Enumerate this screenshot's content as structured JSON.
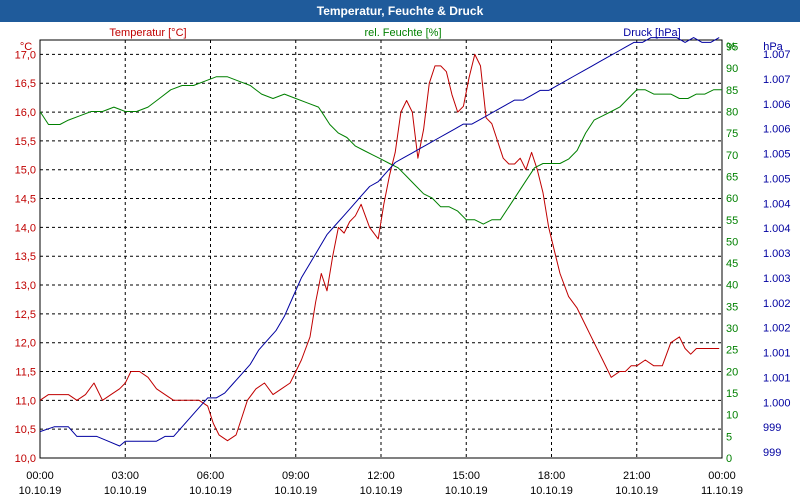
{
  "window": {
    "title": "Temperatur, Feuchte & Druck"
  },
  "chart_data": {
    "type": "line",
    "title": "Temperatur, Feuchte & Druck",
    "x_ticks": [
      {
        "h": 0,
        "time": "00:00",
        "date": "10.10.19"
      },
      {
        "h": 3,
        "time": "03:00",
        "date": "10.10.19"
      },
      {
        "h": 6,
        "time": "06:00",
        "date": "10.10.19"
      },
      {
        "h": 9,
        "time": "09:00",
        "date": "10.10.19"
      },
      {
        "h": 12,
        "time": "12:00",
        "date": "10.10.19"
      },
      {
        "h": 15,
        "time": "15:00",
        "date": "10.10.19"
      },
      {
        "h": 18,
        "time": "18:00",
        "date": "10.10.19"
      },
      {
        "h": 21,
        "time": "21:00",
        "date": "10.10.19"
      },
      {
        "h": 24,
        "time": "00:00",
        "date": "11.10.19"
      }
    ],
    "xlim": [
      0,
      24
    ],
    "grid": true,
    "series": [
      {
        "name": "Temperatur [°C]",
        "axis": "left",
        "unit": "°C",
        "color": "#c00000",
        "ylim": [
          10.0,
          17.25
        ],
        "ticks": [
          "10,0",
          "10,5",
          "11,0",
          "11,5",
          "12,0",
          "12,5",
          "13,0",
          "13,5",
          "14,0",
          "14,5",
          "15,0",
          "15,5",
          "16,0",
          "16,5",
          "17,0"
        ],
        "x": [
          0,
          0.3,
          0.6,
          1.0,
          1.3,
          1.6,
          1.9,
          2.2,
          2.5,
          2.8,
          3.0,
          3.2,
          3.5,
          3.8,
          4.1,
          4.4,
          4.7,
          5.0,
          5.3,
          5.6,
          5.9,
          6.1,
          6.3,
          6.6,
          6.9,
          7.1,
          7.3,
          7.6,
          7.9,
          8.2,
          8.5,
          8.8,
          9.0,
          9.2,
          9.5,
          9.7,
          9.9,
          10.1,
          10.3,
          10.5,
          10.7,
          10.9,
          11.1,
          11.3,
          11.6,
          11.9,
          12.1,
          12.3,
          12.5,
          12.7,
          12.9,
          13.1,
          13.3,
          13.5,
          13.7,
          13.9,
          14.1,
          14.3,
          14.5,
          14.7,
          14.9,
          15.1,
          15.3,
          15.5,
          15.7,
          15.9,
          16.1,
          16.3,
          16.5,
          16.7,
          16.9,
          17.1,
          17.3,
          17.5,
          17.7,
          17.9,
          18.1,
          18.3,
          18.6,
          18.9,
          19.2,
          19.5,
          19.8,
          20.1,
          20.4,
          20.6,
          20.8,
          21.0,
          21.3,
          21.6,
          21.9,
          22.2,
          22.5,
          22.7,
          22.9,
          23.1,
          23.3,
          23.5,
          23.7,
          23.9
        ],
        "values": [
          11.0,
          11.1,
          11.1,
          11.1,
          11.0,
          11.1,
          11.3,
          11.0,
          11.1,
          11.2,
          11.3,
          11.5,
          11.5,
          11.4,
          11.2,
          11.1,
          11.0,
          11.0,
          11.0,
          11.0,
          10.9,
          10.6,
          10.4,
          10.3,
          10.4,
          10.7,
          11.0,
          11.2,
          11.3,
          11.1,
          11.2,
          11.3,
          11.5,
          11.7,
          12.1,
          12.7,
          13.2,
          12.9,
          13.5,
          14.0,
          13.9,
          14.1,
          14.2,
          14.4,
          14.0,
          13.8,
          14.4,
          14.9,
          15.3,
          16.0,
          16.2,
          16.0,
          15.2,
          15.7,
          16.5,
          16.8,
          16.8,
          16.7,
          16.3,
          16.0,
          16.1,
          16.6,
          17.0,
          16.8,
          15.9,
          15.8,
          15.5,
          15.2,
          15.1,
          15.1,
          15.2,
          15.0,
          15.3,
          15.0,
          14.6,
          14.0,
          13.6,
          13.2,
          12.8,
          12.6,
          12.3,
          12.0,
          11.7,
          11.4,
          11.5,
          11.5,
          11.6,
          11.6,
          11.7,
          11.6,
          11.6,
          12.0,
          12.1,
          11.9,
          11.8,
          11.9,
          11.9,
          11.9,
          11.9,
          11.9
        ]
      },
      {
        "name": "rel. Feuchte [%]",
        "axis": "right1",
        "unit": "%",
        "color": "#008000",
        "ylim": [
          0,
          96.5
        ],
        "ticks": [
          "0",
          "5",
          "10",
          "15",
          "20",
          "25",
          "30",
          "35",
          "40",
          "45",
          "50",
          "55",
          "60",
          "65",
          "70",
          "75",
          "80",
          "85",
          "90",
          "95"
        ],
        "x": [
          0,
          0.3,
          0.7,
          1.0,
          1.4,
          1.8,
          2.2,
          2.6,
          3.0,
          3.4,
          3.8,
          4.2,
          4.6,
          5.0,
          5.4,
          5.8,
          6.2,
          6.6,
          7.0,
          7.4,
          7.8,
          8.2,
          8.6,
          9.0,
          9.4,
          9.8,
          10.0,
          10.2,
          10.5,
          10.8,
          11.1,
          11.4,
          11.7,
          12.0,
          12.3,
          12.6,
          12.9,
          13.2,
          13.5,
          13.8,
          14.1,
          14.4,
          14.7,
          15.0,
          15.3,
          15.6,
          15.9,
          16.2,
          16.5,
          16.8,
          17.1,
          17.4,
          17.7,
          18.0,
          18.3,
          18.6,
          18.9,
          19.2,
          19.5,
          19.8,
          20.1,
          20.4,
          20.7,
          21.0,
          21.3,
          21.6,
          21.9,
          22.2,
          22.5,
          22.8,
          23.1,
          23.4,
          23.7,
          24.0
        ],
        "values": [
          80,
          77,
          77,
          78,
          79,
          80,
          80,
          81,
          80,
          80,
          81,
          83,
          85,
          86,
          86,
          87,
          88,
          88,
          87,
          86,
          84,
          83,
          84,
          83,
          82,
          81,
          79,
          77,
          75,
          74,
          72,
          71,
          70,
          69,
          68,
          67,
          65,
          63,
          61,
          60,
          58,
          58,
          57,
          55,
          55,
          54,
          55,
          55,
          58,
          61,
          64,
          67,
          68,
          68,
          68,
          69,
          71,
          75,
          78,
          79,
          80,
          81,
          83,
          85,
          85,
          84,
          84,
          84,
          83,
          83,
          84,
          84,
          85,
          85
        ]
      },
      {
        "name": "Druck [hPa]",
        "axis": "right2",
        "unit": "hPa",
        "color": "#0000a0",
        "ylim": [
          998.75,
          1007.45
        ],
        "ticks": [
          "999",
          "999",
          "1.000",
          "1.001",
          "1.001",
          "1.002",
          "1.002",
          "1.003",
          "1.003",
          "1.004",
          "1.004",
          "1.005",
          "1.005",
          "1.006",
          "1.006",
          "1.007",
          "1.007"
        ],
        "x": [
          0,
          0.5,
          1.0,
          1.3,
          1.6,
          2.0,
          2.4,
          2.8,
          3.0,
          3.2,
          3.5,
          3.8,
          4.1,
          4.4,
          4.7,
          5.0,
          5.3,
          5.6,
          5.9,
          6.2,
          6.5,
          6.8,
          7.1,
          7.4,
          7.7,
          8.0,
          8.3,
          8.6,
          8.9,
          9.2,
          9.5,
          9.8,
          10.1,
          10.4,
          10.7,
          11.0,
          11.3,
          11.6,
          11.9,
          12.2,
          12.5,
          12.8,
          13.1,
          13.4,
          13.7,
          14.0,
          14.3,
          14.6,
          14.9,
          15.2,
          15.5,
          15.8,
          16.1,
          16.4,
          16.7,
          17.0,
          17.3,
          17.6,
          17.9,
          18.2,
          18.5,
          18.8,
          19.1,
          19.4,
          19.7,
          20.0,
          20.3,
          20.6,
          20.9,
          21.2,
          21.5,
          21.8,
          22.1,
          22.4,
          22.7,
          23.0,
          23.3,
          23.6,
          23.9
        ],
        "values": [
          999.3,
          999.4,
          999.4,
          999.2,
          999.2,
          999.2,
          999.1,
          999.0,
          999.1,
          999.1,
          999.1,
          999.1,
          999.1,
          999.2,
          999.2,
          999.4,
          999.6,
          999.8,
          1000.0,
          1000.0,
          1000.1,
          1000.3,
          1000.5,
          1000.7,
          1001.0,
          1001.2,
          1001.4,
          1001.7,
          1002.1,
          1002.5,
          1002.8,
          1003.1,
          1003.4,
          1003.6,
          1003.8,
          1004.0,
          1004.2,
          1004.4,
          1004.5,
          1004.7,
          1004.9,
          1005.0,
          1005.1,
          1005.2,
          1005.3,
          1005.4,
          1005.5,
          1005.6,
          1005.7,
          1005.7,
          1005.8,
          1005.9,
          1006.0,
          1006.1,
          1006.2,
          1006.2,
          1006.3,
          1006.4,
          1006.4,
          1006.5,
          1006.6,
          1006.7,
          1006.8,
          1006.9,
          1007.0,
          1007.1,
          1007.2,
          1007.3,
          1007.4,
          1007.4,
          1007.5,
          1007.5,
          1007.5,
          1007.5,
          1007.4,
          1007.5,
          1007.4,
          1007.4,
          1007.5
        ]
      }
    ],
    "axis_units": {
      "left": "°C",
      "right1": "%",
      "right2": "hPa"
    }
  }
}
